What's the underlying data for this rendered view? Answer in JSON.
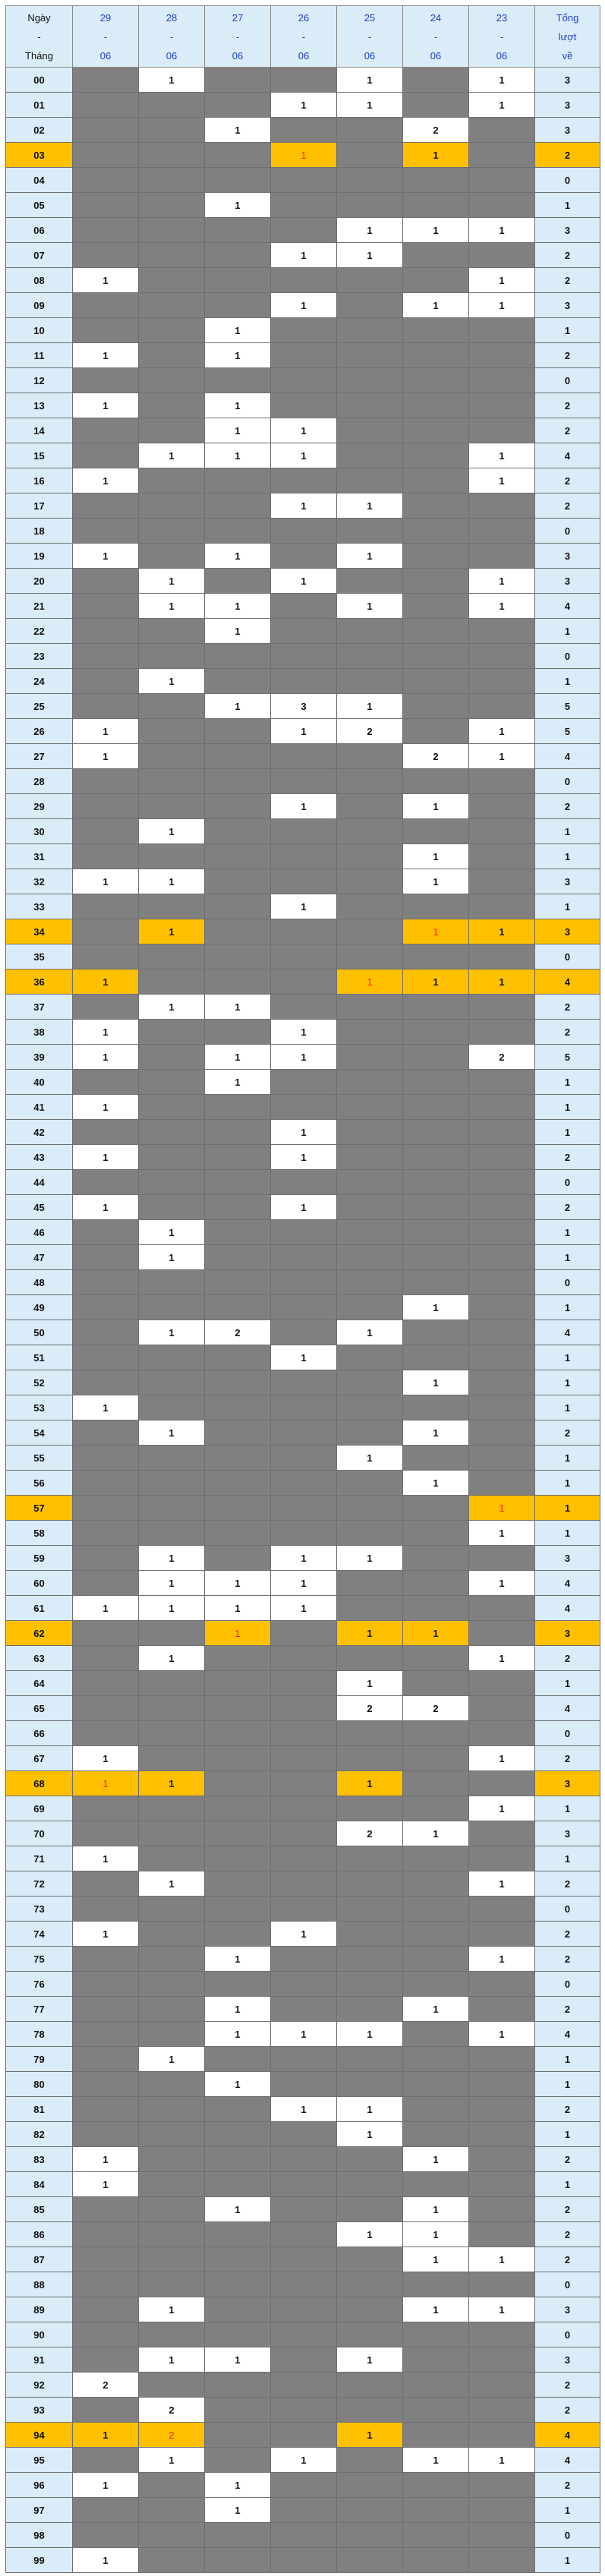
{
  "header": {
    "label_col": [
      "Ngày",
      "-",
      "Tháng"
    ],
    "dates": [
      [
        "29",
        "-",
        "06"
      ],
      [
        "28",
        "-",
        "06"
      ],
      [
        "27",
        "-",
        "06"
      ],
      [
        "26",
        "-",
        "06"
      ],
      [
        "25",
        "-",
        "06"
      ],
      [
        "24",
        "-",
        "06"
      ],
      [
        "23",
        "-",
        "06"
      ]
    ],
    "total_col": [
      "Tổng",
      "lượt",
      "về"
    ]
  },
  "colors": {
    "hit": "#ffffff",
    "empty": "#808080",
    "highlight": "#ffc000",
    "label_bg": "#d9ecf7",
    "date_text": "#1f3fd0",
    "red_value": "#ff1a1a"
  },
  "rows": [
    {
      "num": "00",
      "cells": [
        null,
        1,
        null,
        null,
        1,
        null,
        1
      ],
      "total": 3
    },
    {
      "num": "01",
      "cells": [
        null,
        null,
        null,
        1,
        1,
        null,
        1
      ],
      "total": 3
    },
    {
      "num": "02",
      "cells": [
        null,
        null,
        1,
        null,
        null,
        2,
        null
      ],
      "total": 3
    },
    {
      "num": "03",
      "cells": [
        null,
        null,
        null,
        1,
        null,
        1,
        null
      ],
      "total": 2,
      "highlight": true,
      "red": 3
    },
    {
      "num": "04",
      "cells": [
        null,
        null,
        null,
        null,
        null,
        null,
        null
      ],
      "total": 0
    },
    {
      "num": "05",
      "cells": [
        null,
        null,
        1,
        null,
        null,
        null,
        null
      ],
      "total": 1
    },
    {
      "num": "06",
      "cells": [
        null,
        null,
        null,
        null,
        1,
        1,
        1
      ],
      "total": 3
    },
    {
      "num": "07",
      "cells": [
        null,
        null,
        null,
        1,
        1,
        null,
        null
      ],
      "total": 2
    },
    {
      "num": "08",
      "cells": [
        1,
        null,
        null,
        null,
        null,
        null,
        1
      ],
      "total": 2
    },
    {
      "num": "09",
      "cells": [
        null,
        null,
        null,
        1,
        null,
        1,
        1
      ],
      "total": 3
    },
    {
      "num": "10",
      "cells": [
        null,
        null,
        1,
        null,
        null,
        null,
        null
      ],
      "total": 1
    },
    {
      "num": "11",
      "cells": [
        1,
        null,
        1,
        null,
        null,
        null,
        null
      ],
      "total": 2
    },
    {
      "num": "12",
      "cells": [
        null,
        null,
        null,
        null,
        null,
        null,
        null
      ],
      "total": 0
    },
    {
      "num": "13",
      "cells": [
        1,
        null,
        1,
        null,
        null,
        null,
        null
      ],
      "total": 2
    },
    {
      "num": "14",
      "cells": [
        null,
        null,
        1,
        1,
        null,
        null,
        null
      ],
      "total": 2
    },
    {
      "num": "15",
      "cells": [
        null,
        1,
        1,
        1,
        null,
        null,
        1
      ],
      "total": 4
    },
    {
      "num": "16",
      "cells": [
        1,
        null,
        null,
        null,
        null,
        null,
        1
      ],
      "total": 2
    },
    {
      "num": "17",
      "cells": [
        null,
        null,
        null,
        1,
        1,
        null,
        null
      ],
      "total": 2
    },
    {
      "num": "18",
      "cells": [
        null,
        null,
        null,
        null,
        null,
        null,
        null
      ],
      "total": 0
    },
    {
      "num": "19",
      "cells": [
        1,
        null,
        1,
        null,
        1,
        null,
        null
      ],
      "total": 3
    },
    {
      "num": "20",
      "cells": [
        null,
        1,
        null,
        1,
        null,
        null,
        1
      ],
      "total": 3
    },
    {
      "num": "21",
      "cells": [
        null,
        1,
        1,
        null,
        1,
        null,
        1
      ],
      "total": 4
    },
    {
      "num": "22",
      "cells": [
        null,
        null,
        1,
        null,
        null,
        null,
        null
      ],
      "total": 1
    },
    {
      "num": "23",
      "cells": [
        null,
        null,
        null,
        null,
        null,
        null,
        null
      ],
      "total": 0
    },
    {
      "num": "24",
      "cells": [
        null,
        1,
        null,
        null,
        null,
        null,
        null
      ],
      "total": 1
    },
    {
      "num": "25",
      "cells": [
        null,
        null,
        1,
        3,
        1,
        null,
        null
      ],
      "total": 5
    },
    {
      "num": "26",
      "cells": [
        1,
        null,
        null,
        1,
        2,
        null,
        1
      ],
      "total": 5
    },
    {
      "num": "27",
      "cells": [
        1,
        null,
        null,
        null,
        null,
        2,
        1
      ],
      "total": 4
    },
    {
      "num": "28",
      "cells": [
        null,
        null,
        null,
        null,
        null,
        null,
        null
      ],
      "total": 0
    },
    {
      "num": "29",
      "cells": [
        null,
        null,
        null,
        1,
        null,
        1,
        null
      ],
      "total": 2
    },
    {
      "num": "30",
      "cells": [
        null,
        1,
        null,
        null,
        null,
        null,
        null
      ],
      "total": 1
    },
    {
      "num": "31",
      "cells": [
        null,
        null,
        null,
        null,
        null,
        1,
        null
      ],
      "total": 1
    },
    {
      "num": "32",
      "cells": [
        1,
        1,
        null,
        null,
        null,
        1,
        null
      ],
      "total": 3
    },
    {
      "num": "33",
      "cells": [
        null,
        null,
        null,
        1,
        null,
        null,
        null
      ],
      "total": 1
    },
    {
      "num": "34",
      "cells": [
        null,
        1,
        null,
        null,
        null,
        1,
        1
      ],
      "total": 3,
      "highlight": true,
      "red": 5
    },
    {
      "num": "35",
      "cells": [
        null,
        null,
        null,
        null,
        null,
        null,
        null
      ],
      "total": 0
    },
    {
      "num": "36",
      "cells": [
        1,
        null,
        null,
        null,
        1,
        1,
        1
      ],
      "total": 4,
      "highlight": true,
      "red": 4
    },
    {
      "num": "37",
      "cells": [
        null,
        1,
        1,
        null,
        null,
        null,
        null
      ],
      "total": 2
    },
    {
      "num": "38",
      "cells": [
        1,
        null,
        null,
        1,
        null,
        null,
        null
      ],
      "total": 2
    },
    {
      "num": "39",
      "cells": [
        1,
        null,
        1,
        1,
        null,
        null,
        2
      ],
      "total": 5
    },
    {
      "num": "40",
      "cells": [
        null,
        null,
        1,
        null,
        null,
        null,
        null
      ],
      "total": 1
    },
    {
      "num": "41",
      "cells": [
        1,
        null,
        null,
        null,
        null,
        null,
        null
      ],
      "total": 1
    },
    {
      "num": "42",
      "cells": [
        null,
        null,
        null,
        1,
        null,
        null,
        null
      ],
      "total": 1
    },
    {
      "num": "43",
      "cells": [
        1,
        null,
        null,
        1,
        null,
        null,
        null
      ],
      "total": 2
    },
    {
      "num": "44",
      "cells": [
        null,
        null,
        null,
        null,
        null,
        null,
        null
      ],
      "total": 0
    },
    {
      "num": "45",
      "cells": [
        1,
        null,
        null,
        1,
        null,
        null,
        null
      ],
      "total": 2
    },
    {
      "num": "46",
      "cells": [
        null,
        1,
        null,
        null,
        null,
        null,
        null
      ],
      "total": 1
    },
    {
      "num": "47",
      "cells": [
        null,
        1,
        null,
        null,
        null,
        null,
        null
      ],
      "total": 1
    },
    {
      "num": "48",
      "cells": [
        null,
        null,
        null,
        null,
        null,
        null,
        null
      ],
      "total": 0
    },
    {
      "num": "49",
      "cells": [
        null,
        null,
        null,
        null,
        null,
        1,
        null
      ],
      "total": 1
    },
    {
      "num": "50",
      "cells": [
        null,
        1,
        2,
        null,
        1,
        null,
        null
      ],
      "total": 4
    },
    {
      "num": "51",
      "cells": [
        null,
        null,
        null,
        1,
        null,
        null,
        null
      ],
      "total": 1
    },
    {
      "num": "52",
      "cells": [
        null,
        null,
        null,
        null,
        null,
        1,
        null
      ],
      "total": 1
    },
    {
      "num": "53",
      "cells": [
        1,
        null,
        null,
        null,
        null,
        null,
        null
      ],
      "total": 1
    },
    {
      "num": "54",
      "cells": [
        null,
        1,
        null,
        null,
        null,
        1,
        null
      ],
      "total": 2
    },
    {
      "num": "55",
      "cells": [
        null,
        null,
        null,
        null,
        1,
        null,
        null
      ],
      "total": 1
    },
    {
      "num": "56",
      "cells": [
        null,
        null,
        null,
        null,
        null,
        1,
        null
      ],
      "total": 1
    },
    {
      "num": "57",
      "cells": [
        null,
        null,
        null,
        null,
        null,
        null,
        1
      ],
      "total": 1,
      "highlight": true,
      "red": 6
    },
    {
      "num": "58",
      "cells": [
        null,
        null,
        null,
        null,
        null,
        null,
        1
      ],
      "total": 1
    },
    {
      "num": "59",
      "cells": [
        null,
        1,
        null,
        1,
        1,
        null,
        null
      ],
      "total": 3
    },
    {
      "num": "60",
      "cells": [
        null,
        1,
        1,
        1,
        null,
        null,
        1
      ],
      "total": 4
    },
    {
      "num": "61",
      "cells": [
        1,
        1,
        1,
        1,
        null,
        null,
        null
      ],
      "total": 4
    },
    {
      "num": "62",
      "cells": [
        null,
        null,
        1,
        null,
        1,
        1,
        null
      ],
      "total": 3,
      "highlight": true,
      "red": 2
    },
    {
      "num": "63",
      "cells": [
        null,
        1,
        null,
        null,
        null,
        null,
        1
      ],
      "total": 2
    },
    {
      "num": "64",
      "cells": [
        null,
        null,
        null,
        null,
        1,
        null,
        null
      ],
      "total": 1
    },
    {
      "num": "65",
      "cells": [
        null,
        null,
        null,
        null,
        2,
        2,
        null
      ],
      "total": 4
    },
    {
      "num": "66",
      "cells": [
        null,
        null,
        null,
        null,
        null,
        null,
        null
      ],
      "total": 0
    },
    {
      "num": "67",
      "cells": [
        1,
        null,
        null,
        null,
        null,
        null,
        1
      ],
      "total": 2
    },
    {
      "num": "68",
      "cells": [
        1,
        1,
        null,
        null,
        1,
        null,
        null
      ],
      "total": 3,
      "highlight": true,
      "red": 0
    },
    {
      "num": "69",
      "cells": [
        null,
        null,
        null,
        null,
        null,
        null,
        1
      ],
      "total": 1
    },
    {
      "num": "70",
      "cells": [
        null,
        null,
        null,
        null,
        2,
        1,
        null
      ],
      "total": 3
    },
    {
      "num": "71",
      "cells": [
        1,
        null,
        null,
        null,
        null,
        null,
        null
      ],
      "total": 1
    },
    {
      "num": "72",
      "cells": [
        null,
        1,
        null,
        null,
        null,
        null,
        1
      ],
      "total": 2
    },
    {
      "num": "73",
      "cells": [
        null,
        null,
        null,
        null,
        null,
        null,
        null
      ],
      "total": 0
    },
    {
      "num": "74",
      "cells": [
        1,
        null,
        null,
        1,
        null,
        null,
        null
      ],
      "total": 2
    },
    {
      "num": "75",
      "cells": [
        null,
        null,
        1,
        null,
        null,
        null,
        1
      ],
      "total": 2
    },
    {
      "num": "76",
      "cells": [
        null,
        null,
        null,
        null,
        null,
        null,
        null
      ],
      "total": 0
    },
    {
      "num": "77",
      "cells": [
        null,
        null,
        1,
        null,
        null,
        1,
        null
      ],
      "total": 2
    },
    {
      "num": "78",
      "cells": [
        null,
        null,
        1,
        1,
        1,
        null,
        1
      ],
      "total": 4
    },
    {
      "num": "79",
      "cells": [
        null,
        1,
        null,
        null,
        null,
        null,
        null
      ],
      "total": 1
    },
    {
      "num": "80",
      "cells": [
        null,
        null,
        1,
        null,
        null,
        null,
        null
      ],
      "total": 1
    },
    {
      "num": "81",
      "cells": [
        null,
        null,
        null,
        1,
        1,
        null,
        null
      ],
      "total": 2
    },
    {
      "num": "82",
      "cells": [
        null,
        null,
        null,
        null,
        1,
        null,
        null
      ],
      "total": 1
    },
    {
      "num": "83",
      "cells": [
        1,
        null,
        null,
        null,
        null,
        1,
        null
      ],
      "total": 2
    },
    {
      "num": "84",
      "cells": [
        1,
        null,
        null,
        null,
        null,
        null,
        null
      ],
      "total": 1
    },
    {
      "num": "85",
      "cells": [
        null,
        null,
        1,
        null,
        null,
        1,
        null
      ],
      "total": 2
    },
    {
      "num": "86",
      "cells": [
        null,
        null,
        null,
        null,
        1,
        1,
        null
      ],
      "total": 2
    },
    {
      "num": "87",
      "cells": [
        null,
        null,
        null,
        null,
        null,
        1,
        1
      ],
      "total": 2
    },
    {
      "num": "88",
      "cells": [
        null,
        null,
        null,
        null,
        null,
        null,
        null
      ],
      "total": 0
    },
    {
      "num": "89",
      "cells": [
        null,
        1,
        null,
        null,
        null,
        1,
        1
      ],
      "total": 3
    },
    {
      "num": "90",
      "cells": [
        null,
        null,
        null,
        null,
        null,
        null,
        null
      ],
      "total": 0
    },
    {
      "num": "91",
      "cells": [
        null,
        1,
        1,
        null,
        1,
        null,
        null
      ],
      "total": 3
    },
    {
      "num": "92",
      "cells": [
        2,
        null,
        null,
        null,
        null,
        null,
        null
      ],
      "total": 2
    },
    {
      "num": "93",
      "cells": [
        null,
        2,
        null,
        null,
        null,
        null,
        null
      ],
      "total": 2
    },
    {
      "num": "94",
      "cells": [
        1,
        2,
        null,
        null,
        1,
        null,
        null
      ],
      "total": 4,
      "highlight": true,
      "red": 1
    },
    {
      "num": "95",
      "cells": [
        null,
        1,
        null,
        1,
        null,
        1,
        1
      ],
      "total": 4
    },
    {
      "num": "96",
      "cells": [
        1,
        null,
        1,
        null,
        null,
        null,
        null
      ],
      "total": 2
    },
    {
      "num": "97",
      "cells": [
        null,
        null,
        1,
        null,
        null,
        null,
        null
      ],
      "total": 1
    },
    {
      "num": "98",
      "cells": [
        null,
        null,
        null,
        null,
        null,
        null,
        null
      ],
      "total": 0
    },
    {
      "num": "99",
      "cells": [
        1,
        null,
        null,
        null,
        null,
        null,
        null
      ],
      "total": 1
    }
  ]
}
